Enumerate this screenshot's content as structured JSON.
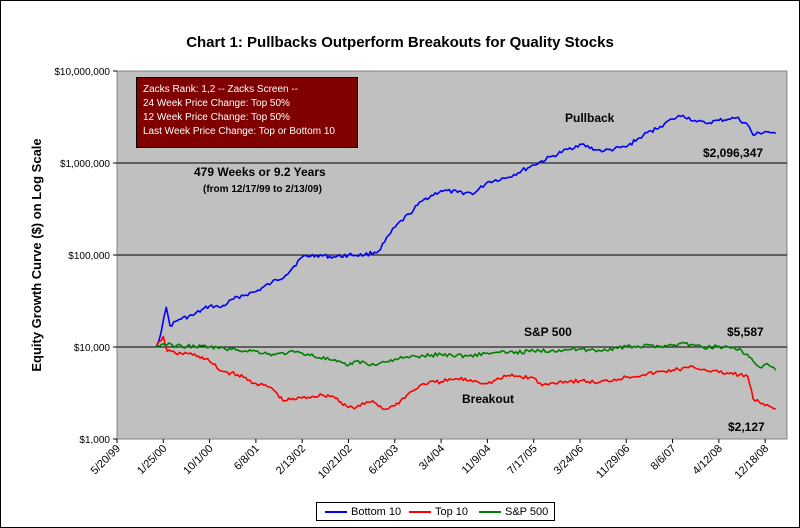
{
  "title": "Chart 1: Pullbacks Outperform Breakouts for Quality Stocks",
  "colors": {
    "bottom10": "#0000ff",
    "top10": "#ff0000",
    "sp500": "#008000",
    "plot_bg": "#c0c0c0",
    "box_bg": "#800000"
  },
  "infobox": {
    "line1": "Zacks Rank:  1,2      -- Zacks Screen --",
    "line2": "24 Week Price Change: Top 50%",
    "line3": "12 Week Price Change: Top 50%",
    "line4": "Last Week Price Change: Top or Bottom  10"
  },
  "annotations": {
    "weeks": "479 Weeks  or 9.2 Years",
    "range": "(from 12/17/99 to 2/13/09)",
    "pullback": "Pullback",
    "breakout": "Breakout",
    "sp500": "S&P 500",
    "bottom10_final": "$2,096,347",
    "sp500_final": "$5,587",
    "top10_final": "$2,127"
  },
  "legend": {
    "bottom10": "Bottom 10",
    "top10": "Top 10",
    "sp500": "S&P 500"
  },
  "chart_data": {
    "type": "line",
    "title": "Chart 1: Pullbacks Outperform Breakouts for Quality Stocks",
    "ylabel": "Equity Growth Curve ($) on Log Scale",
    "xlabel": "",
    "y_scale": "log",
    "ylim": [
      1000,
      10000000
    ],
    "y_ticks": [
      "$1,000",
      "$10,000",
      "$100,000",
      "$1,000,000",
      "$10,000,000"
    ],
    "x_ticks": [
      "5/20/99",
      "1/25/00",
      "10/1/00",
      "6/8/01",
      "2/13/02",
      "10/21/02",
      "6/28/03",
      "3/4/04",
      "11/9/04",
      "7/17/05",
      "3/24/06",
      "11/29/06",
      "8/6/07",
      "4/12/08",
      "12/18/08"
    ],
    "xlim": [
      "5/20/99",
      "4/15/09"
    ],
    "grid": "horizontal major",
    "legend_position": "bottom",
    "series": [
      {
        "name": "Bottom 10",
        "points": [
          [
            "12/17/99",
            10000
          ],
          [
            "1/15/00",
            15000
          ],
          [
            "2/10/00",
            27000
          ],
          [
            "3/1/00",
            17000
          ],
          [
            "4/20/00",
            20000
          ],
          [
            "7/1/00",
            22000
          ],
          [
            "10/1/00",
            28000
          ],
          [
            "12/1/00",
            27000
          ],
          [
            "3/1/01",
            35000
          ],
          [
            "6/8/01",
            40000
          ],
          [
            "9/1/01",
            50000
          ],
          [
            "11/15/01",
            60000
          ],
          [
            "2/13/02",
            95000
          ],
          [
            "5/1/02",
            100000
          ],
          [
            "8/1/02",
            95000
          ],
          [
            "10/21/02",
            100000
          ],
          [
            "1/15/03",
            100000
          ],
          [
            "4/1/03",
            110000
          ],
          [
            "6/28/03",
            200000
          ],
          [
            "9/15/03",
            280000
          ],
          [
            "12/1/03",
            400000
          ],
          [
            "3/4/04",
            500000
          ],
          [
            "6/1/04",
            480000
          ],
          [
            "9/1/04",
            470000
          ],
          [
            "11/9/04",
            620000
          ],
          [
            "3/1/05",
            700000
          ],
          [
            "7/17/05",
            950000
          ],
          [
            "11/1/05",
            1200000
          ],
          [
            "3/24/06",
            1600000
          ],
          [
            "6/15/06",
            1400000
          ],
          [
            "8/1/06",
            1350000
          ],
          [
            "11/29/06",
            1500000
          ],
          [
            "3/1/07",
            2000000
          ],
          [
            "6/1/07",
            2500000
          ],
          [
            "8/6/07",
            3000000
          ],
          [
            "10/1/07",
            3300000
          ],
          [
            "12/15/07",
            2800000
          ],
          [
            "2/1/08",
            2700000
          ],
          [
            "4/12/08",
            2900000
          ],
          [
            "6/1/08",
            3000000
          ],
          [
            "7/15/08",
            3100000
          ],
          [
            "9/15/08",
            2600000
          ],
          [
            "10/15/08",
            2000000
          ],
          [
            "12/18/08",
            2200000
          ],
          [
            "2/13/09",
            2096347
          ]
        ]
      },
      {
        "name": "Top 10",
        "points": [
          [
            "12/17/99",
            10000
          ],
          [
            "1/5/00",
            11500
          ],
          [
            "1/25/00",
            13000
          ],
          [
            "2/15/00",
            9000
          ],
          [
            "4/1/00",
            8500
          ],
          [
            "6/1/00",
            8500
          ],
          [
            "8/1/00",
            8000
          ],
          [
            "10/1/00",
            7000
          ],
          [
            "12/1/00",
            5500
          ],
          [
            "3/1/01",
            5000
          ],
          [
            "6/8/01",
            4000
          ],
          [
            "9/1/01",
            3600
          ],
          [
            "11/1/01",
            2600
          ],
          [
            "2/13/02",
            2800
          ],
          [
            "6/1/02",
            3000
          ],
          [
            "8/1/02",
            2900
          ],
          [
            "10/21/02",
            2200
          ],
          [
            "12/1/02",
            2200
          ],
          [
            "3/1/03",
            2600
          ],
          [
            "5/1/03",
            2100
          ],
          [
            "6/28/03",
            2300
          ],
          [
            "9/1/03",
            3000
          ],
          [
            "12/1/03",
            4000
          ],
          [
            "3/4/04",
            4200
          ],
          [
            "6/1/04",
            4500
          ],
          [
            "9/1/04",
            4300
          ],
          [
            "11/9/04",
            4000
          ],
          [
            "3/1/05",
            4900
          ],
          [
            "7/17/05",
            4600
          ],
          [
            "9/1/05",
            3800
          ],
          [
            "12/1/05",
            4200
          ],
          [
            "3/24/06",
            4300
          ],
          [
            "7/1/06",
            4100
          ],
          [
            "11/29/06",
            4700
          ],
          [
            "3/1/07",
            5000
          ],
          [
            "8/6/07",
            5600
          ],
          [
            "12/1/07",
            6000
          ],
          [
            "4/12/08",
            5300
          ],
          [
            "8/1/08",
            5000
          ],
          [
            "9/15/08",
            4800
          ],
          [
            "10/15/08",
            2700
          ],
          [
            "12/18/08",
            2300
          ],
          [
            "2/13/09",
            2127
          ]
        ]
      },
      {
        "name": "S&P 500",
        "points": [
          [
            "12/17/99",
            10000
          ],
          [
            "1/25/00",
            10800
          ],
          [
            "3/15/00",
            10400
          ],
          [
            "6/1/00",
            10200
          ],
          [
            "10/1/00",
            10000
          ],
          [
            "3/1/01",
            9300
          ],
          [
            "6/8/01",
            9000
          ],
          [
            "9/20/01",
            8200
          ],
          [
            "12/1/01",
            8800
          ],
          [
            "2/13/02",
            8600
          ],
          [
            "7/20/02",
            7200
          ],
          [
            "10/10/02",
            6300
          ],
          [
            "12/1/02",
            7000
          ],
          [
            "3/10/03",
            6400
          ],
          [
            "6/28/03",
            7400
          ],
          [
            "12/1/03",
            8000
          ],
          [
            "3/4/04",
            8300
          ],
          [
            "8/1/04",
            8000
          ],
          [
            "11/9/04",
            8600
          ],
          [
            "3/1/05",
            8700
          ],
          [
            "7/17/05",
            9000
          ],
          [
            "12/1/05",
            9300
          ],
          [
            "3/24/06",
            9500
          ],
          [
            "7/1/06",
            9200
          ],
          [
            "11/29/06",
            10000
          ],
          [
            "3/1/07",
            10200
          ],
          [
            "8/6/07",
            10400
          ],
          [
            "10/10/07",
            11000
          ],
          [
            "1/20/08",
            9800
          ],
          [
            "4/12/08",
            10200
          ],
          [
            "8/1/08",
            9600
          ],
          [
            "10/15/08",
            7000
          ],
          [
            "11/20/08",
            6000
          ],
          [
            "12/18/08",
            6500
          ],
          [
            "2/13/09",
            5587
          ]
        ]
      }
    ]
  }
}
